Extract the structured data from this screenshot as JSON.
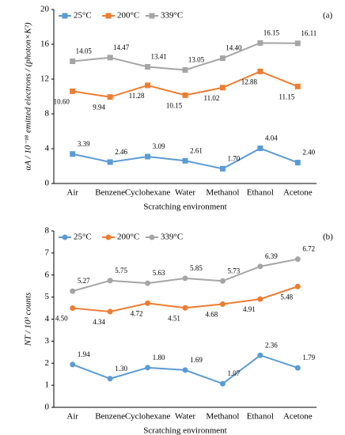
{
  "chart_data": [
    {
      "type": "line",
      "panel_label": "(a)",
      "ylabel": "αA / 10⁻¹⁸ emitted electrons / (photon×K²)",
      "xlabel": "Scratching environment",
      "categories": [
        "Air",
        "Benzene",
        "Cyclohexane",
        "Water",
        "Methanol",
        "Ethanol",
        "Acetone"
      ],
      "ylim": [
        0,
        20
      ],
      "yticks": [
        0,
        4,
        8,
        12,
        16,
        20
      ],
      "marker": "square",
      "grid": false,
      "series": [
        {
          "name": "25°C",
          "color": "#5b9bd5",
          "values": [
            3.39,
            2.46,
            3.09,
            2.61,
            1.7,
            4.04,
            2.4
          ],
          "value_labels": [
            "3.39",
            "2.46",
            "3.09",
            "2.61",
            "1.70",
            "4.04",
            "2.40"
          ]
        },
        {
          "name": "200°C",
          "color": "#ed7d31",
          "values": [
            10.6,
            9.94,
            11.28,
            10.15,
            11.02,
            12.88,
            11.15
          ],
          "value_labels": [
            "10.60",
            "9.94",
            "11.28",
            "10.15",
            "11.02",
            "12.88",
            "11.15"
          ]
        },
        {
          "name": "339°C",
          "color": "#a5a5a5",
          "values": [
            14.05,
            14.47,
            13.41,
            13.05,
            14.4,
            16.15,
            16.11
          ],
          "value_labels": [
            "14.05",
            "14.47",
            "13.41",
            "13.05",
            "14.40",
            "16.15",
            "16.11"
          ]
        }
      ]
    },
    {
      "type": "line",
      "panel_label": "(b)",
      "ylabel": "NT / 10³ counts",
      "xlabel": "Scratching environment",
      "categories": [
        "Air",
        "Benzene",
        "Cyclohexane",
        "Water",
        "Methanol",
        "Ethanol",
        "Acetone"
      ],
      "ylim": [
        0,
        8
      ],
      "yticks": [
        0,
        1,
        2,
        3,
        4,
        5,
        6,
        7,
        8
      ],
      "marker": "circle",
      "grid": false,
      "series": [
        {
          "name": "25°C",
          "color": "#5b9bd5",
          "values": [
            1.94,
            1.3,
            1.8,
            1.69,
            1.07,
            2.36,
            1.79
          ],
          "value_labels": [
            "1.94",
            "1.30",
            "1.80",
            "1.69",
            "1.07",
            "2.36",
            "1.79"
          ]
        },
        {
          "name": "200°C",
          "color": "#ed7d31",
          "values": [
            4.5,
            4.34,
            4.72,
            4.51,
            4.68,
            4.91,
            5.48
          ],
          "value_labels": [
            "4.50",
            "4.34",
            "4.72",
            "4.51",
            "4.68",
            "4.91",
            "5.48"
          ]
        },
        {
          "name": "339°C",
          "color": "#a5a5a5",
          "values": [
            5.27,
            5.75,
            5.63,
            5.85,
            5.73,
            6.39,
            6.72
          ],
          "value_labels": [
            "5.27",
            "5.75",
            "5.63",
            "5.85",
            "5.73",
            "6.39",
            "6.72"
          ]
        }
      ]
    }
  ]
}
